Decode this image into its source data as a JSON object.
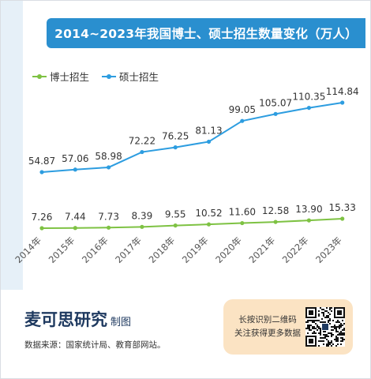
{
  "title": "2014~2023年我国博士、硕士招生数量变化（万人）",
  "legend": {
    "phd": "博士招生",
    "master": "硕士招生"
  },
  "colors": {
    "title_band": "#2a8fcf",
    "phd_line": "#7ec243",
    "master_line": "#2d9de0",
    "brand": "#1f3a60",
    "qr_box": "#fbe3c3"
  },
  "chart_data": {
    "type": "line",
    "categories": [
      "2014年",
      "2015年",
      "2016年",
      "2017年",
      "2018年",
      "2019年",
      "2020年",
      "2021年",
      "2022年",
      "2023年"
    ],
    "series": [
      {
        "name": "硕士招生",
        "values": [
          54.87,
          57.06,
          58.98,
          72.22,
          76.25,
          81.13,
          99.05,
          105.07,
          110.35,
          114.84
        ]
      },
      {
        "name": "博士招生",
        "values": [
          7.26,
          7.44,
          7.73,
          8.39,
          9.55,
          10.52,
          11.6,
          12.58,
          13.9,
          15.33
        ]
      }
    ],
    "data_labels": true,
    "grid": false,
    "legend_position": "top-left"
  },
  "footer": {
    "brand": "麦可思研究",
    "brand_sub": "制图",
    "source": "数据来源：国家统计局、教育部网站。",
    "qr_line1": "长按识别二维码",
    "qr_line2": "关注获得更多数据"
  }
}
